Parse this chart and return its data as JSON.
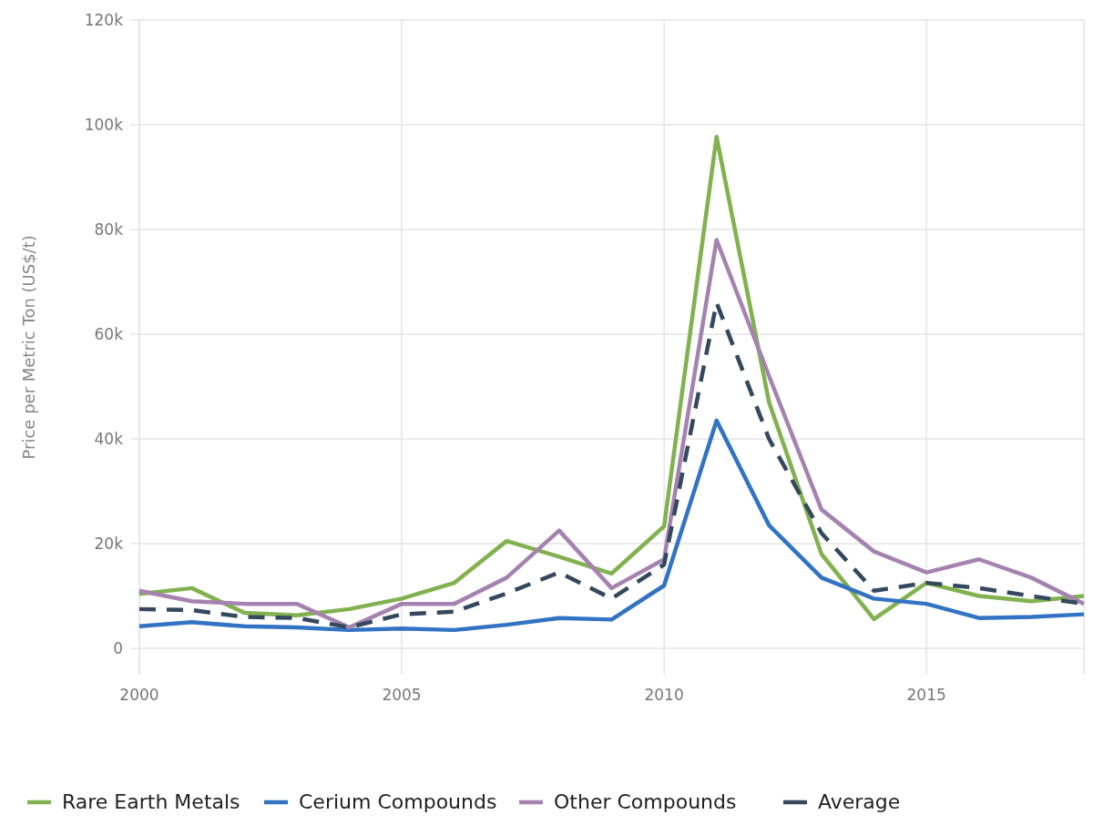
{
  "chart_data": {
    "type": "line",
    "ylabel": "Price per Metric Ton (US$/t)",
    "x": [
      2000,
      2001,
      2002,
      2003,
      2004,
      2005,
      2006,
      2007,
      2008,
      2009,
      2010,
      2011,
      2012,
      2013,
      2014,
      2015,
      2016,
      2017,
      2018
    ],
    "xlim": [
      2000,
      2018
    ],
    "xticks": [
      2000,
      2005,
      2010,
      2015
    ],
    "ylim": [
      -5000,
      120000
    ],
    "yticks": [
      0,
      {
        "value": 20000,
        "label": "20k"
      },
      {
        "value": 40000,
        "label": "40k"
      },
      {
        "value": 60000,
        "label": "60k"
      },
      {
        "value": 80000,
        "label": "80k"
      },
      {
        "value": 100000,
        "label": "100k"
      },
      {
        "value": 120000,
        "label": "120k"
      }
    ],
    "grid": true,
    "legend": "bottom",
    "marker": "none",
    "series": [
      {
        "name": "Rare Earth Metals",
        "color": "#82b14f",
        "values": [
          10400,
          11500,
          6800,
          6300,
          7500,
          9500,
          12500,
          20500,
          17500,
          14300,
          23300,
          97700,
          47000,
          18000,
          5600,
          12500,
          10000,
          9000,
          10000
        ]
      },
      {
        "name": "Cerium Compounds",
        "color": "#3273c3",
        "values": [
          4200,
          5000,
          4200,
          4000,
          3500,
          3800,
          3500,
          4500,
          5800,
          5500,
          12000,
          43500,
          23500,
          13500,
          9500,
          8500,
          5800,
          6000,
          6500
        ]
      },
      {
        "name": "Other Compounds",
        "color": "#a583b0",
        "values": [
          11000,
          9000,
          8500,
          8500,
          4000,
          8500,
          8500,
          13500,
          22500,
          11500,
          17000,
          78000,
          52000,
          26500,
          18500,
          14500,
          17000,
          13500,
          8500
        ]
      },
      {
        "name": "Average",
        "color": "#34495e",
        "line_style": "dashed",
        "values": [
          7500,
          7300,
          6000,
          5800,
          4000,
          6500,
          7000,
          10500,
          14500,
          9500,
          16000,
          66000,
          40000,
          22000,
          11000,
          12500,
          11500,
          10000,
          8500
        ]
      }
    ]
  }
}
